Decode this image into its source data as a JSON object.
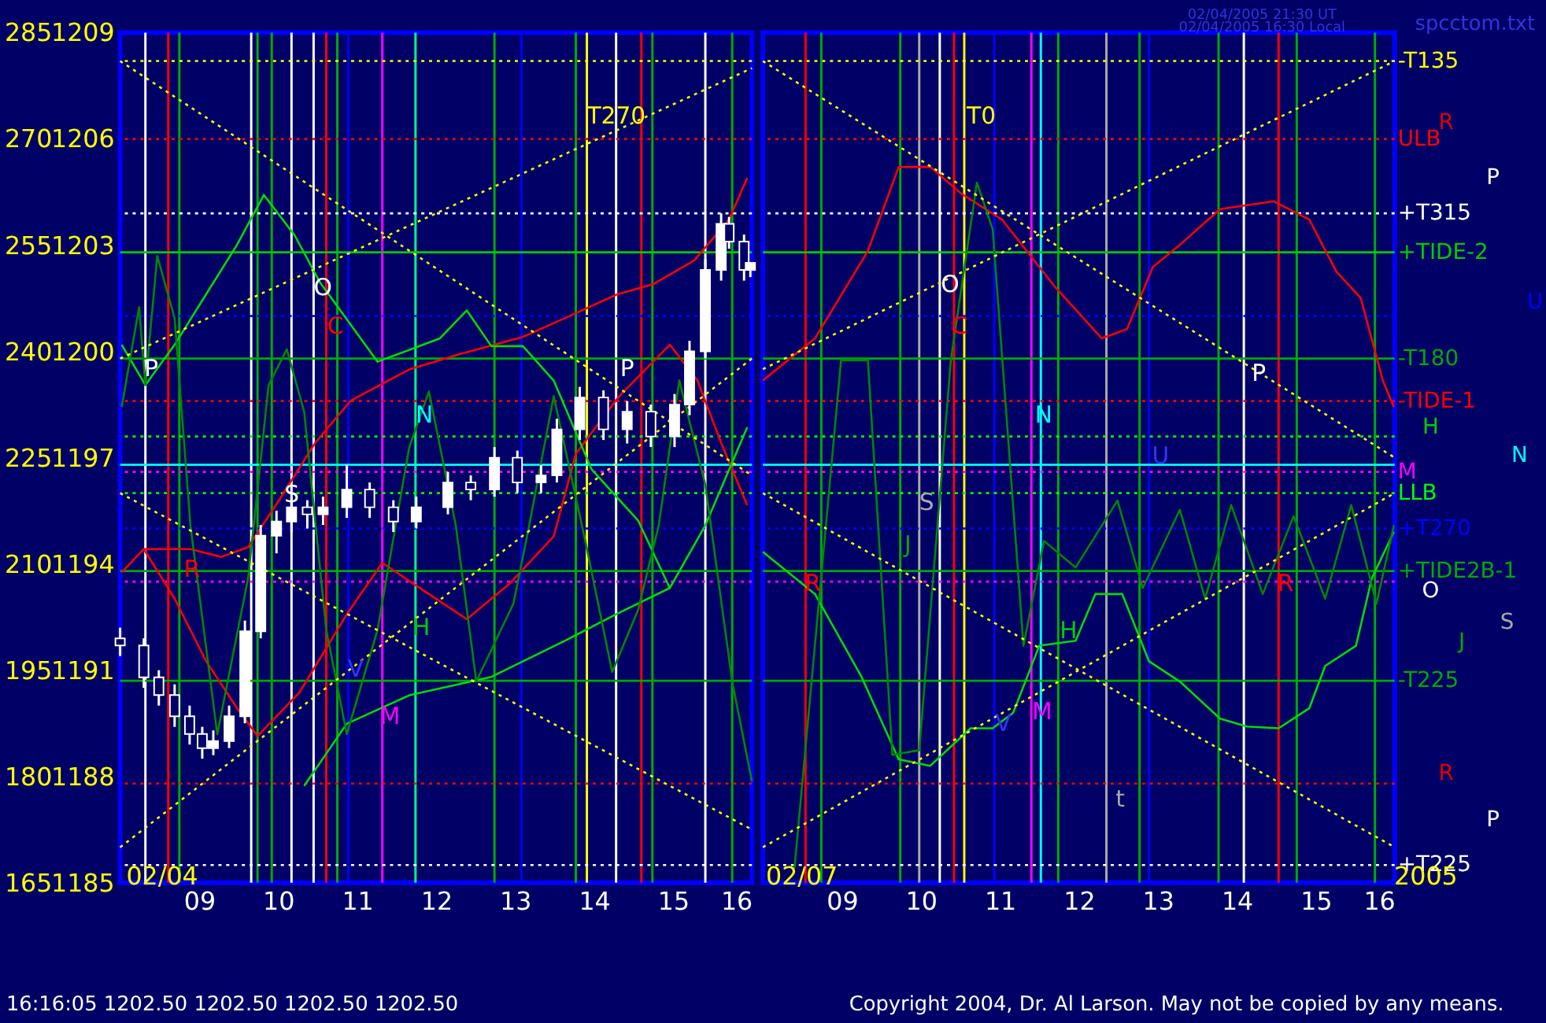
{
  "chart_data": [
    {
      "type": "candlestick",
      "xlim": [
        8,
        16
      ],
      "ylim": [
        1185,
        1209
      ],
      "y2lim": [
        165,
        285
      ],
      "xticks": [
        {
          "value": 9,
          "label": "09"
        },
        10,
        11,
        12,
        13,
        14,
        15,
        16
      ],
      "yticks": [
        1185,
        1188,
        1191,
        1194,
        1197,
        1200,
        1203,
        1206,
        1209
      ],
      "y2ticks": [
        165,
        180,
        195,
        210,
        225,
        240,
        255,
        270,
        285
      ],
      "x": [
        8.0,
        8.3,
        8.49,
        8.69,
        8.88,
        9.04,
        9.18,
        9.38,
        9.58,
        9.78,
        9.98,
        10.17,
        10.37,
        10.57,
        10.87,
        11.16,
        11.46,
        11.75,
        12.15,
        12.44,
        12.74,
        13.03,
        13.33,
        13.53,
        13.82,
        14.12,
        14.42,
        14.72,
        15.02,
        15.21,
        15.41,
        15.61,
        15.71,
        15.9,
        15.98
      ],
      "ohlc": [
        [
          1191.9,
          1192.2,
          1191.4,
          1191.7
        ],
        [
          1191.7,
          1191.9,
          1190.5,
          1190.8
        ],
        [
          1190.8,
          1191.0,
          1190.0,
          1190.3
        ],
        [
          1190.3,
          1190.6,
          1189.4,
          1189.7
        ],
        [
          1189.7,
          1190.0,
          1188.9,
          1189.2
        ],
        [
          1189.2,
          1189.4,
          1188.5,
          1188.8
        ],
        [
          1188.8,
          1189.3,
          1188.6,
          1189.0
        ],
        [
          1189.0,
          1190.0,
          1188.8,
          1189.7
        ],
        [
          1189.7,
          1192.4,
          1189.5,
          1192.1
        ],
        [
          1192.1,
          1195.1,
          1191.9,
          1194.8
        ],
        [
          1194.8,
          1195.5,
          1194.3,
          1195.2
        ],
        [
          1195.2,
          1195.9,
          1194.9,
          1195.6
        ],
        [
          1195.6,
          1195.8,
          1195.0,
          1195.4
        ],
        [
          1195.4,
          1195.9,
          1195.1,
          1195.6
        ],
        [
          1195.6,
          1196.8,
          1195.3,
          1196.1
        ],
        [
          1196.1,
          1196.3,
          1195.3,
          1195.6
        ],
        [
          1195.6,
          1195.8,
          1194.9,
          1195.2
        ],
        [
          1195.2,
          1195.9,
          1195.0,
          1195.6
        ],
        [
          1195.6,
          1196.6,
          1195.4,
          1196.3
        ],
        [
          1196.3,
          1196.5,
          1195.8,
          1196.1
        ],
        [
          1196.1,
          1197.3,
          1195.9,
          1197.0
        ],
        [
          1197.0,
          1197.2,
          1196.0,
          1196.3
        ],
        [
          1196.3,
          1196.8,
          1196.0,
          1196.5
        ],
        [
          1196.5,
          1198.1,
          1196.3,
          1197.8
        ],
        [
          1197.8,
          1199.0,
          1197.5,
          1198.7
        ],
        [
          1198.7,
          1198.9,
          1197.5,
          1197.8
        ],
        [
          1197.8,
          1198.6,
          1197.4,
          1198.3
        ],
        [
          1198.3,
          1198.5,
          1197.3,
          1197.6
        ],
        [
          1197.6,
          1198.8,
          1197.3,
          1198.5
        ],
        [
          1198.5,
          1200.3,
          1198.2,
          1200.0
        ],
        [
          1200.0,
          1202.6,
          1199.8,
          1202.3
        ],
        [
          1202.3,
          1203.9,
          1202.0,
          1203.6
        ],
        [
          1203.6,
          1203.8,
          1202.9,
          1203.1
        ],
        [
          1203.1,
          1203.3,
          1202.0,
          1202.3
        ],
        [
          1202.3,
          1202.5,
          1202.1,
          1202.5
        ]
      ],
      "series": [
        {
          "type": "line",
          "color": "#ff0000",
          "line_style": "solid",
          "x": [
            8.02,
            8.3,
            8.89,
            9.28,
            9.62,
            10.01,
            10.47,
            10.92,
            11.66,
            12.31,
            13.1,
            13.63,
            14.28,
            14.76,
            15.27,
            15.71,
            15.94
          ],
          "values": [
            1193.76,
            1194.42,
            1194.42,
            1194.2,
            1194.47,
            1195.79,
            1197.42,
            1198.61,
            1199.49,
            1199.93,
            1200.41,
            1200.94,
            1201.6,
            1201.91,
            1202.57,
            1203.72,
            1204.9
          ]
        },
        {
          "type": "line",
          "color": "#ff0000",
          "line_style": "solid",
          "x": [
            8.3,
            8.69,
            9.09,
            9.48,
            9.74,
            10.27,
            10.87,
            11.32,
            11.85,
            12.39,
            12.94,
            13.49,
            13.77,
            14.32,
            14.96,
            15.31,
            15.61,
            15.94
          ],
          "values": [
            1194.42,
            1193.02,
            1191.25,
            1189.93,
            1189.14,
            1190.37,
            1192.58,
            1194.03,
            1193.24,
            1192.44,
            1193.46,
            1194.78,
            1197.11,
            1198.74,
            1200.19,
            1199.18,
            1197.42,
            1195.66
          ]
        },
        {
          "type": "line",
          "color": "#00dd00",
          "line_style": "solid",
          "x": [
            8.02,
            8.32,
            8.69,
            9.48,
            9.82,
            10.21,
            10.53,
            11.26,
            12.05,
            12.39,
            12.7,
            13.1,
            13.49,
            13.97,
            14.56,
            14.96,
            15.41,
            15.94
          ],
          "values": [
            1200.19,
            1199.05,
            1200.19,
            1203.01,
            1204.42,
            1203.28,
            1201.95,
            1199.71,
            1200.37,
            1201.16,
            1200.15,
            1200.15,
            1199.18,
            1196.67,
            1195.22,
            1193.32,
            1195.09,
            1197.86
          ]
        },
        {
          "type": "line",
          "color": "#00dd00",
          "line_style": "solid",
          "x": [
            10.33,
            10.87,
            11.66,
            12.7,
            13.63,
            14.28,
            14.96
          ],
          "values": [
            1187.73,
            1189.49,
            1190.29,
            1190.81,
            1191.83,
            1192.58,
            1193.32
          ]
        },
        {
          "type": "line",
          "color": "#008800",
          "line_style": "solid",
          "x": [
            8.02,
            8.24,
            8.32,
            8.47,
            8.69,
            8.89,
            9.23,
            9.62,
            9.88,
            10.11,
            10.33,
            10.61,
            10.87,
            11.26,
            11.66,
            11.91,
            12.25,
            12.51,
            12.98,
            13.18,
            13.49,
            13.89,
            14.23,
            14.56,
            14.82,
            15.08,
            15.41,
            15.75,
            16.0
          ],
          "values": [
            1198.43,
            1201.25,
            1199.05,
            1202.7,
            1200.94,
            1195.09,
            1189.19,
            1193.59,
            1199.05,
            1200.06,
            1198.3,
            1192.14,
            1189.19,
            1192.14,
            1197.29,
            1198.87,
            1195.09,
            1190.68,
            1192.88,
            1195.09,
            1198.74,
            1194.65,
            1190.95,
            1192.71,
            1195.09,
            1199.18,
            1196.23,
            1190.68,
            1187.86
          ]
        },
        {
          "type": "line",
          "color": "#ffff00",
          "line_style": "dotted",
          "x": [
            8,
            16
          ],
          "values": [
            1208.2,
            1196.5
          ]
        },
        {
          "type": "line",
          "color": "#ffff00",
          "line_style": "dotted",
          "x": [
            8,
            16
          ],
          "values": [
            1199.8,
            1208.0
          ]
        },
        {
          "type": "line",
          "color": "#ffff00",
          "line_style": "dotted",
          "x": [
            8,
            16
          ],
          "values": [
            1196.0,
            1186.5
          ]
        },
        {
          "type": "line",
          "color": "#ffff00",
          "line_style": "dotted",
          "x": [
            8,
            16
          ],
          "values": [
            1186.0,
            1199.8
          ]
        }
      ],
      "ref_lines": [
        {
          "axis": "y",
          "value": 1208.2,
          "color": "#ffff00",
          "line_style": "dotted"
        },
        {
          "axis": "y",
          "value": 1206.0,
          "color": "#ff0000",
          "line_style": "dotted"
        },
        {
          "axis": "y",
          "value": 1203.9,
          "color": "#ffffff",
          "line_style": "dotted"
        },
        {
          "axis": "y",
          "value": 1202.8,
          "color": "#00cc00",
          "line_style": "solid"
        },
        {
          "axis": "y",
          "value": 1201.0,
          "color": "#0000ff",
          "line_style": "dotted"
        },
        {
          "axis": "y",
          "value": 1199.8,
          "color": "#00aa00",
          "line_style": "solid"
        },
        {
          "axis": "y",
          "value": 1198.6,
          "color": "#ff0000",
          "line_style": "dotted"
        },
        {
          "axis": "y",
          "value": 1197.6,
          "color": "#00ff00",
          "line_style": "dotted"
        },
        {
          "axis": "y",
          "value": 1196.8,
          "color": "#00ffff",
          "line_style": "solid"
        },
        {
          "axis": "y",
          "value": 1196.6,
          "color": "#ff00ff",
          "line_style": "dotted"
        },
        {
          "axis": "y",
          "value": 1196.0,
          "color": "#00ff00",
          "line_style": "dotted"
        },
        {
          "axis": "y",
          "value": 1195.0,
          "color": "#0000ff",
          "line_style": "dotted"
        },
        {
          "axis": "y",
          "value": 1193.8,
          "color": "#00aa00",
          "line_style": "solid"
        },
        {
          "axis": "y",
          "value": 1193.5,
          "color": "#ff00ff",
          "line_style": "dotted"
        },
        {
          "axis": "y",
          "value": 1190.7,
          "color": "#00aa00",
          "line_style": "solid"
        },
        {
          "axis": "y",
          "value": 1187.8,
          "color": "#ff0000",
          "line_style": "dotted"
        },
        {
          "axis": "y",
          "value": 1185.5,
          "color": "#ffffff",
          "line_style": "dotted"
        },
        {
          "axis": "x",
          "value": 8.32,
          "color": "#ffffff"
        },
        {
          "axis": "x",
          "value": 8.61,
          "color": "#ff0000"
        },
        {
          "axis": "x",
          "value": 8.75,
          "color": "#00aa00"
        },
        {
          "axis": "x",
          "value": 9.66,
          "color": "#ffffff"
        },
        {
          "axis": "x",
          "value": 9.74,
          "color": "#00aa00"
        },
        {
          "axis": "x",
          "value": 9.92,
          "color": "#00aa00"
        },
        {
          "axis": "x",
          "value": 10.17,
          "color": "#ffffff"
        },
        {
          "axis": "x",
          "value": 10.45,
          "color": "#ffffff"
        },
        {
          "axis": "x",
          "value": 10.61,
          "color": "#ff0000"
        },
        {
          "axis": "x",
          "value": 10.75,
          "color": "#00aa00"
        },
        {
          "axis": "x",
          "value": 10.89,
          "color": "#0000ff"
        },
        {
          "axis": "x",
          "value": 11.32,
          "color": "#ff00ff"
        },
        {
          "axis": "x",
          "value": 11.74,
          "color": "#00ff88"
        },
        {
          "axis": "x",
          "value": 12.74,
          "color": "#00aa00"
        },
        {
          "axis": "x",
          "value": 13.08,
          "color": "#0000ff"
        },
        {
          "axis": "x",
          "value": 13.77,
          "color": "#00aa00"
        },
        {
          "axis": "x",
          "value": 13.91,
          "color": "#ffff00"
        },
        {
          "axis": "x",
          "value": 14.28,
          "color": "#ffffff"
        },
        {
          "axis": "x",
          "value": 14.6,
          "color": "#ff0000"
        },
        {
          "axis": "x",
          "value": 14.74,
          "color": "#00aa00"
        },
        {
          "axis": "x",
          "value": 15.41,
          "color": "#ffffff"
        },
        {
          "axis": "x",
          "value": 15.75,
          "color": "#00aa00"
        }
      ],
      "annotations": [
        "T270",
        "P",
        "O",
        "C",
        "N",
        "P",
        "S",
        "H",
        "V",
        "M",
        "R",
        "02/04",
        "16:16:05  1202.50  1202.50  1202.50  1202.50"
      ]
    },
    {
      "type": "line",
      "tick_labels": "x",
      "xlim": [
        8,
        16
      ],
      "ylim": [
        1185,
        1209
      ],
      "xticks": [
        {
          "value": 9,
          "label": "09"
        },
        10,
        11,
        12,
        13,
        14,
        15,
        16
      ],
      "series": [
        {
          "type": "line",
          "color": "#ff0000",
          "line_style": "solid",
          "x": [
            8.0,
            8.66,
            9.33,
            9.72,
            10.12,
            10.51,
            11.03,
            11.7,
            12.29,
            12.61,
            12.94,
            13.28,
            13.79,
            14.47,
            14.92,
            15.26,
            15.57,
            15.85,
            15.99
          ],
          "values": [
            1199.18,
            1200.37,
            1202.84,
            1205.21,
            1205.21,
            1204.46,
            1203.72,
            1201.82,
            1200.37,
            1200.63,
            1202.39,
            1203.01,
            1204.02,
            1204.24,
            1203.72,
            1202.26,
            1201.51,
            1199.18,
            1198.43
          ]
        },
        {
          "type": "line",
          "color": "#00dd00",
          "line_style": "solid",
          "x": [
            8.0,
            8.66,
            9.25,
            9.72,
            10.12,
            10.63,
            10.91,
            11.17,
            11.5,
            11.96,
            12.21,
            12.55,
            12.89,
            13.28,
            13.79,
            14.13,
            14.53,
            14.92,
            15.12,
            15.51,
            15.71,
            15.99
          ],
          "values": [
            1194.34,
            1193.15,
            1190.81,
            1188.48,
            1188.3,
            1189.36,
            1189.36,
            1189.8,
            1191.69,
            1191.83,
            1193.15,
            1193.15,
            1191.25,
            1190.68,
            1189.63,
            1189.41,
            1189.36,
            1189.93,
            1191.12,
            1191.69,
            1193.59,
            1194.91
          ]
        },
        {
          "type": "line",
          "color": "#008800",
          "line_style": "solid",
          "x": [
            8.4,
            8.99,
            9.33,
            9.64,
            9.98,
            10.38,
            10.71,
            10.91,
            11.3,
            11.56,
            11.96,
            12.49,
            12.81,
            13.28,
            13.6,
            13.93,
            14.33,
            14.72,
            15.12,
            15.45,
            15.77,
            15.99
          ],
          "values": [
            1185.4,
            1199.75,
            1199.75,
            1188.61,
            1188.74,
            1199.75,
            1204.77,
            1203.45,
            1191.69,
            1194.65,
            1193.9,
            1195.79,
            1193.32,
            1195.53,
            1193.02,
            1195.66,
            1193.15,
            1195.35,
            1193.02,
            1195.66,
            1192.88,
            1195.09
          ]
        },
        {
          "type": "line",
          "color": "#ffff00",
          "line_style": "dotted",
          "x": [
            8,
            16
          ],
          "values": [
            1208.2,
            1197.0
          ]
        },
        {
          "type": "line",
          "color": "#ffff00",
          "line_style": "dotted",
          "x": [
            8,
            16
          ],
          "values": [
            1199.5,
            1208.2
          ]
        },
        {
          "type": "line",
          "color": "#ffff00",
          "line_style": "dotted",
          "x": [
            8,
            16
          ],
          "values": [
            1196.0,
            1186.0
          ]
        },
        {
          "type": "line",
          "color": "#ffff00",
          "line_style": "dotted",
          "x": [
            8,
            16
          ],
          "values": [
            1186.0,
            1196.0
          ]
        }
      ],
      "ref_lines": [
        {
          "axis": "y",
          "value": 1208.2,
          "label": "-T135",
          "color": "#ffff00",
          "line_style": "dotted"
        },
        {
          "axis": "y",
          "value": 1206.0,
          "label": "ULB",
          "color": "#ff0000",
          "line_style": "dotted"
        },
        {
          "axis": "y",
          "value": 1203.9,
          "label": "+T315",
          "color": "#ffffff",
          "line_style": "dotted"
        },
        {
          "axis": "y",
          "value": 1202.8,
          "label": "+TIDE-2",
          "color": "#00cc00",
          "line_style": "solid"
        },
        {
          "axis": "y",
          "value": 1201.0,
          "color": "#0000ff",
          "line_style": "dotted"
        },
        {
          "axis": "y",
          "value": 1199.8,
          "label": "-T180",
          "color": "#00aa00",
          "line_style": "solid"
        },
        {
          "axis": "y",
          "value": 1198.6,
          "label": "-TIDE-1",
          "color": "#ff0000",
          "line_style": "dotted"
        },
        {
          "axis": "y",
          "value": 1197.6,
          "color": "#00ff00",
          "line_style": "dotted"
        },
        {
          "axis": "y",
          "value": 1196.8,
          "color": "#00ffff",
          "line_style": "solid"
        },
        {
          "axis": "y",
          "value": 1196.6,
          "label": "M",
          "color": "#ff00ff",
          "line_style": "dotted"
        },
        {
          "axis": "y",
          "value": 1196.0,
          "label": "LLB",
          "color": "#00ff00",
          "line_style": "dotted"
        },
        {
          "axis": "y",
          "value": 1195.0,
          "label": "+T270",
          "color": "#0000ff",
          "line_style": "dotted"
        },
        {
          "axis": "y",
          "value": 1193.8,
          "label": "+TIDE2B-1",
          "color": "#00aa00",
          "line_style": "solid"
        },
        {
          "axis": "y",
          "value": 1193.5,
          "color": "#ff00ff",
          "line_style": "dotted"
        },
        {
          "axis": "y",
          "value": 1190.7,
          "label": "-T225",
          "color": "#00aa00",
          "line_style": "solid"
        },
        {
          "axis": "y",
          "value": 1187.8,
          "color": "#ff0000",
          "line_style": "dotted"
        },
        {
          "axis": "y",
          "value": 1185.5,
          "label": "+T225",
          "color": "#ffffff",
          "line_style": "dotted"
        },
        {
          "axis": "x",
          "value": 8.54,
          "color": "#ff0000"
        },
        {
          "axis": "x",
          "value": 8.74,
          "color": "#00aa00"
        },
        {
          "axis": "x",
          "value": 9.74,
          "color": "#00aa00"
        },
        {
          "axis": "x",
          "value": 9.98,
          "color": "#aaaaaa"
        },
        {
          "axis": "x",
          "value": 10.24,
          "color": "#ffffff"
        },
        {
          "axis": "x",
          "value": 10.42,
          "color": "#ff0000"
        },
        {
          "axis": "x",
          "value": 10.55,
          "color": "#ffff00"
        },
        {
          "axis": "x",
          "value": 10.93,
          "color": "#0000ff"
        },
        {
          "axis": "x",
          "value": 11.4,
          "color": "#ff00ff"
        },
        {
          "axis": "x",
          "value": 11.52,
          "color": "#00ffff"
        },
        {
          "axis": "x",
          "value": 11.74,
          "color": "#00aa00"
        },
        {
          "axis": "x",
          "value": 12.35,
          "color": "#aaaaaa"
        },
        {
          "axis": "x",
          "value": 12.77,
          "color": "#00aa00"
        },
        {
          "axis": "x",
          "value": 12.89,
          "color": "#0000ff"
        },
        {
          "axis": "x",
          "value": 13.77,
          "color": "#00aa00"
        },
        {
          "axis": "x",
          "value": 14.09,
          "color": "#ffffff"
        },
        {
          "axis": "x",
          "value": 14.53,
          "color": "#ff0000"
        },
        {
          "axis": "x",
          "value": 14.76,
          "color": "#00aa00"
        },
        {
          "axis": "x",
          "value": 15.75,
          "color": "#00aa00"
        }
      ],
      "annotations": [
        "T0",
        "O",
        "C",
        "N",
        "U",
        "S",
        "J",
        "R",
        "R",
        "V",
        "H",
        "M",
        "t",
        "P",
        "02/07",
        "spcctom.txt",
        "02/04/2005 21:30 UT",
        "02/04/2005 16:30 Local",
        "2005",
        "Copyright 2004, Dr. Al Larson. May not be copied by any means.",
        "R",
        "P",
        "U",
        "H",
        "N",
        "O",
        "S",
        "J",
        "R",
        "P"
      ]
    }
  ]
}
